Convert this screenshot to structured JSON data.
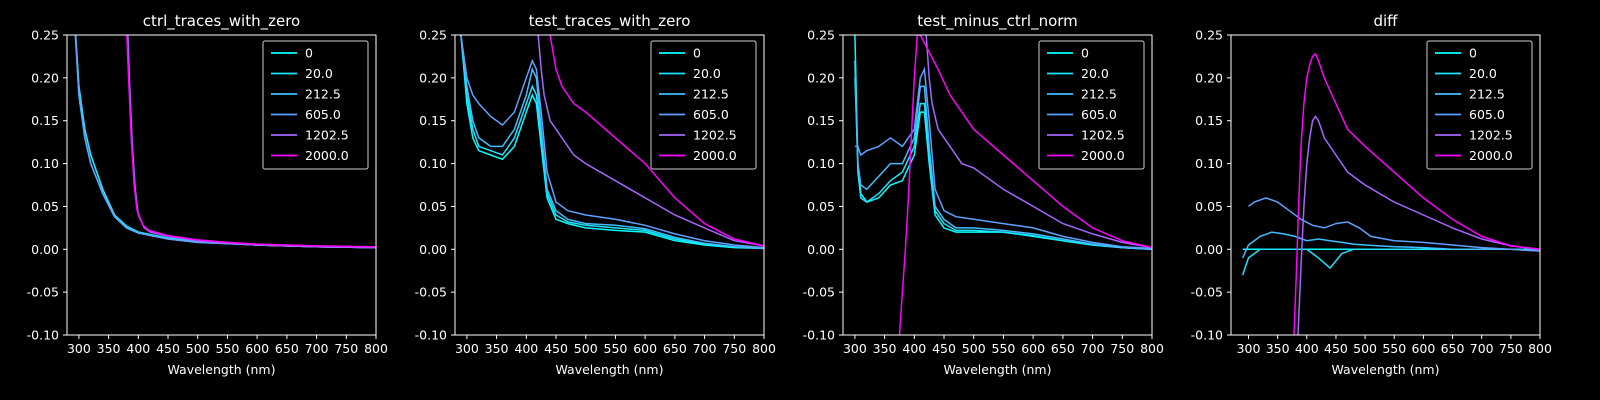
{
  "chart_data": [
    {
      "type": "line",
      "title": "ctrl_traces_with_zero",
      "xlabel": "Wavelength (nm)",
      "xlim": [
        280,
        800
      ],
      "ylim": [
        -0.1,
        0.25
      ],
      "xticks": [
        300,
        350,
        400,
        450,
        500,
        550,
        600,
        650,
        700,
        750,
        800
      ],
      "yticks": [
        -0.1,
        -0.05,
        0.0,
        0.05,
        0.1,
        0.15,
        0.2,
        0.25
      ],
      "legend_position": "top-right",
      "series": [
        {
          "name": "0",
          "color": "#00ffff",
          "x": [
            280,
            290,
            300,
            310,
            320,
            340,
            360,
            380,
            400,
            450,
            500,
            600,
            700,
            800
          ],
          "y": [
            null,
            0.3,
            0.19,
            0.14,
            0.11,
            0.07,
            0.04,
            0.027,
            0.02,
            0.013,
            0.009,
            0.005,
            0.003,
            0.002
          ]
        },
        {
          "name": "20.0",
          "color": "#1ae5ff",
          "x": [
            280,
            290,
            300,
            310,
            320,
            340,
            360,
            380,
            400,
            450,
            500,
            600,
            700,
            800
          ],
          "y": [
            null,
            0.3,
            0.19,
            0.14,
            0.11,
            0.07,
            0.04,
            0.027,
            0.02,
            0.013,
            0.009,
            0.005,
            0.003,
            0.002
          ]
        },
        {
          "name": "212.5",
          "color": "#40bfff",
          "x": [
            280,
            290,
            300,
            310,
            320,
            340,
            360,
            380,
            400,
            450,
            500,
            600,
            700,
            800
          ],
          "y": [
            null,
            0.3,
            0.18,
            0.13,
            0.1,
            0.065,
            0.038,
            0.025,
            0.019,
            0.012,
            0.008,
            0.005,
            0.003,
            0.002
          ]
        },
        {
          "name": "605.0",
          "color": "#60a0ff",
          "x": [
            280,
            290,
            300,
            310,
            320,
            340,
            360,
            380,
            400,
            450,
            500,
            600,
            700,
            800
          ],
          "y": [
            null,
            0.3,
            0.18,
            0.13,
            0.1,
            0.065,
            0.038,
            0.025,
            0.019,
            0.012,
            0.008,
            0.005,
            0.003,
            0.002
          ]
        },
        {
          "name": "1202.5",
          "color": "#a666ff",
          "x": [
            380,
            385,
            390,
            395,
            400,
            410,
            420,
            450,
            500,
            550,
            600,
            700,
            800
          ],
          "y": [
            0.3,
            0.2,
            0.12,
            0.07,
            0.04,
            0.025,
            0.02,
            0.015,
            0.01,
            0.007,
            0.005,
            0.003,
            0.002
          ]
        },
        {
          "name": "2000.0",
          "color": "#ff00ff",
          "x": [
            378,
            383,
            388,
            393,
            398,
            408,
            418,
            450,
            500,
            550,
            600,
            700,
            800
          ],
          "y": [
            0.3,
            0.21,
            0.13,
            0.075,
            0.045,
            0.028,
            0.022,
            0.016,
            0.011,
            0.008,
            0.006,
            0.004,
            0.003
          ]
        }
      ]
    },
    {
      "type": "line",
      "title": "test_traces_with_zero",
      "xlabel": "Wavelength (nm)",
      "xlim": [
        280,
        800
      ],
      "ylim": [
        -0.1,
        0.25
      ],
      "xticks": [
        300,
        350,
        400,
        450,
        500,
        550,
        600,
        650,
        700,
        750,
        800
      ],
      "yticks": [
        -0.1,
        -0.05,
        0.0,
        0.05,
        0.1,
        0.15,
        0.2,
        0.25
      ],
      "legend_position": "top-right",
      "series": [
        {
          "name": "0",
          "color": "#00ffff",
          "x": [
            290,
            300,
            310,
            320,
            340,
            360,
            380,
            400,
            410,
            417,
            425,
            435,
            450,
            470,
            500,
            550,
            600,
            650,
            700,
            750,
            800
          ],
          "y": [
            0.25,
            0.17,
            0.13,
            0.115,
            0.11,
            0.105,
            0.12,
            0.16,
            0.18,
            0.17,
            0.12,
            0.06,
            0.035,
            0.03,
            0.025,
            0.022,
            0.02,
            0.01,
            0.005,
            0.002,
            0.001
          ]
        },
        {
          "name": "20.0",
          "color": "#1ae5ff",
          "x": [
            290,
            300,
            310,
            320,
            340,
            360,
            380,
            400,
            410,
            417,
            425,
            435,
            450,
            470,
            500,
            550,
            600,
            650,
            700,
            750,
            800
          ],
          "y": [
            0.25,
            0.18,
            0.14,
            0.12,
            0.115,
            0.11,
            0.13,
            0.17,
            0.19,
            0.18,
            0.13,
            0.065,
            0.04,
            0.032,
            0.028,
            0.025,
            0.022,
            0.012,
            0.006,
            0.003,
            0.001
          ]
        },
        {
          "name": "212.5",
          "color": "#40bfff",
          "x": [
            290,
            300,
            310,
            320,
            340,
            360,
            380,
            400,
            410,
            417,
            425,
            435,
            450,
            470,
            500,
            550,
            600,
            650,
            700,
            750,
            800
          ],
          "y": [
            0.25,
            0.19,
            0.15,
            0.13,
            0.12,
            0.12,
            0.14,
            0.18,
            0.21,
            0.2,
            0.14,
            0.07,
            0.045,
            0.035,
            0.03,
            0.028,
            0.024,
            0.014,
            0.007,
            0.003,
            0.001
          ]
        },
        {
          "name": "605.0",
          "color": "#60a0ff",
          "x": [
            290,
            300,
            310,
            320,
            340,
            360,
            380,
            400,
            410,
            417,
            425,
            435,
            450,
            470,
            500,
            550,
            600,
            650,
            700,
            750,
            800
          ],
          "y": [
            0.25,
            0.2,
            0.18,
            0.17,
            0.155,
            0.145,
            0.16,
            0.2,
            0.22,
            0.21,
            0.16,
            0.09,
            0.055,
            0.045,
            0.04,
            0.035,
            0.028,
            0.018,
            0.01,
            0.005,
            0.002
          ]
        },
        {
          "name": "1202.5",
          "color": "#a666ff",
          "x": [
            420,
            425,
            430,
            440,
            460,
            480,
            500,
            550,
            600,
            650,
            700,
            750,
            800
          ],
          "y": [
            0.25,
            0.21,
            0.18,
            0.15,
            0.13,
            0.11,
            0.1,
            0.08,
            0.06,
            0.04,
            0.025,
            0.01,
            0.004
          ]
        },
        {
          "name": "2000.0",
          "color": "#ff00ff",
          "x": [
            440,
            450,
            460,
            480,
            500,
            550,
            600,
            650,
            700,
            750,
            800
          ],
          "y": [
            0.25,
            0.21,
            0.19,
            0.17,
            0.16,
            0.13,
            0.1,
            0.06,
            0.03,
            0.012,
            0.004
          ]
        }
      ]
    },
    {
      "type": "line",
      "title": "test_minus_ctrl_norm",
      "xlabel": "Wavelength (nm)",
      "xlim": [
        280,
        800
      ],
      "ylim": [
        -0.1,
        0.25
      ],
      "xticks": [
        300,
        350,
        400,
        450,
        500,
        550,
        600,
        650,
        700,
        750,
        800
      ],
      "yticks": [
        -0.1,
        -0.05,
        0.0,
        0.05,
        0.1,
        0.15,
        0.2,
        0.25
      ],
      "legend_position": "top-right",
      "series": [
        {
          "name": "0",
          "color": "#00ffff",
          "x": [
            300,
            305,
            310,
            320,
            340,
            360,
            380,
            400,
            410,
            417,
            425,
            435,
            450,
            470,
            500,
            550,
            600,
            650,
            700,
            750,
            800
          ],
          "y": [
            0.25,
            0.1,
            0.065,
            0.055,
            0.06,
            0.075,
            0.08,
            0.11,
            0.16,
            0.16,
            0.1,
            0.04,
            0.025,
            0.02,
            0.02,
            0.02,
            0.015,
            0.01,
            0.005,
            0.002,
            0.0
          ]
        },
        {
          "name": "20.0",
          "color": "#1ae5ff",
          "x": [
            300,
            305,
            310,
            320,
            340,
            360,
            380,
            400,
            410,
            417,
            425,
            435,
            450,
            470,
            500,
            550,
            600,
            650,
            700,
            750,
            800
          ],
          "y": [
            0.22,
            0.09,
            0.06,
            0.055,
            0.065,
            0.08,
            0.09,
            0.12,
            0.17,
            0.17,
            0.11,
            0.045,
            0.03,
            0.022,
            0.022,
            0.02,
            0.016,
            0.01,
            0.005,
            0.002,
            0.0
          ]
        },
        {
          "name": "212.5",
          "color": "#40bfff",
          "x": [
            300,
            305,
            310,
            320,
            340,
            360,
            380,
            400,
            410,
            417,
            425,
            435,
            450,
            470,
            500,
            550,
            600,
            650,
            700,
            750,
            800
          ],
          "y": [
            0.2,
            0.1,
            0.075,
            0.07,
            0.085,
            0.1,
            0.1,
            0.13,
            0.19,
            0.19,
            0.12,
            0.05,
            0.035,
            0.025,
            0.025,
            0.022,
            0.018,
            0.012,
            0.006,
            0.002,
            0.0
          ]
        },
        {
          "name": "605.0",
          "color": "#60a0ff",
          "x": [
            300,
            305,
            310,
            320,
            340,
            360,
            380,
            400,
            410,
            417,
            425,
            435,
            450,
            470,
            500,
            550,
            600,
            650,
            700,
            750,
            800
          ],
          "y": [
            0.12,
            0.12,
            0.11,
            0.115,
            0.12,
            0.13,
            0.12,
            0.14,
            0.2,
            0.21,
            0.15,
            0.07,
            0.045,
            0.038,
            0.035,
            0.03,
            0.025,
            0.015,
            0.008,
            0.003,
            0.001
          ]
        },
        {
          "name": "1202.5",
          "color": "#a666ff",
          "x": [
            420,
            425,
            430,
            440,
            460,
            480,
            500,
            550,
            600,
            650,
            700,
            750,
            800
          ],
          "y": [
            0.25,
            0.2,
            0.17,
            0.14,
            0.12,
            0.1,
            0.095,
            0.07,
            0.05,
            0.03,
            0.018,
            0.008,
            0.002
          ]
        },
        {
          "name": "2000.0",
          "color": "#ff00ff",
          "x": [
            375,
            380,
            385,
            390,
            395,
            400,
            405,
            410,
            440,
            460,
            480,
            500,
            550,
            600,
            650,
            700,
            750,
            800
          ],
          "y": [
            -0.1,
            -0.05,
            0.0,
            0.06,
            0.13,
            0.2,
            0.25,
            0.25,
            0.21,
            0.18,
            0.16,
            0.14,
            0.11,
            0.08,
            0.05,
            0.025,
            0.01,
            0.002
          ]
        }
      ]
    },
    {
      "type": "line",
      "title": "diff",
      "xlabel": "Wavelength (nm)",
      "xlim": [
        270,
        800
      ],
      "ylim": [
        -0.1,
        0.25
      ],
      "xticks": [
        300,
        350,
        400,
        450,
        500,
        550,
        600,
        650,
        700,
        750,
        800
      ],
      "yticks": [
        -0.1,
        -0.05,
        0.0,
        0.05,
        0.1,
        0.15,
        0.2,
        0.25
      ],
      "legend_position": "top-right",
      "series": [
        {
          "name": "0",
          "color": "#00ffff",
          "x": [
            290,
            300,
            350,
            400,
            450,
            500,
            550,
            600,
            650,
            700,
            750,
            800
          ],
          "y": [
            0.0,
            0.0,
            0.0,
            0.0,
            0.0,
            0.0,
            0.0,
            0.0,
            0.0,
            0.0,
            0.0,
            0.0
          ]
        },
        {
          "name": "20.0",
          "color": "#1ae5ff",
          "x": [
            290,
            300,
            320,
            340,
            360,
            380,
            400,
            420,
            440,
            460,
            480,
            500,
            550,
            600,
            650,
            700,
            750,
            800
          ],
          "y": [
            -0.03,
            -0.01,
            0.0,
            0.0,
            0.0,
            0.0,
            0.0,
            -0.01,
            -0.022,
            -0.005,
            0.0,
            0.0,
            0.0,
            0.0,
            0.0,
            0.0,
            0.0,
            0.0
          ]
        },
        {
          "name": "212.5",
          "color": "#40bfff",
          "x": [
            290,
            300,
            320,
            340,
            360,
            380,
            400,
            420,
            440,
            460,
            480,
            500,
            550,
            600,
            650,
            700,
            750,
            800
          ],
          "y": [
            -0.01,
            0.005,
            0.015,
            0.02,
            0.018,
            0.015,
            0.01,
            0.012,
            0.01,
            0.008,
            0.006,
            0.005,
            0.003,
            0.002,
            0.0,
            0.0,
            0.0,
            -0.002
          ]
        },
        {
          "name": "605.0",
          "color": "#60a0ff",
          "x": [
            300,
            310,
            330,
            350,
            370,
            390,
            410,
            430,
            450,
            470,
            490,
            510,
            550,
            600,
            650,
            700,
            750,
            800
          ],
          "y": [
            0.05,
            0.055,
            0.06,
            0.055,
            0.045,
            0.035,
            0.028,
            0.025,
            0.03,
            0.032,
            0.025,
            0.015,
            0.01,
            0.008,
            0.005,
            0.002,
            0.0,
            -0.002
          ]
        },
        {
          "name": "1202.5",
          "color": "#a666ff",
          "x": [
            385,
            390,
            395,
            400,
            405,
            410,
            415,
            420,
            430,
            450,
            470,
            500,
            550,
            600,
            650,
            700,
            750,
            800
          ],
          "y": [
            -0.1,
            -0.02,
            0.05,
            0.1,
            0.13,
            0.15,
            0.155,
            0.15,
            0.13,
            0.11,
            0.09,
            0.075,
            0.055,
            0.04,
            0.025,
            0.012,
            0.004,
            0.0
          ]
        },
        {
          "name": "2000.0",
          "color": "#ff00ff",
          "x": [
            378,
            382,
            386,
            390,
            395,
            400,
            405,
            410,
            415,
            420,
            430,
            450,
            470,
            500,
            550,
            600,
            650,
            700,
            750,
            800
          ],
          "y": [
            -0.1,
            -0.03,
            0.05,
            0.12,
            0.17,
            0.2,
            0.215,
            0.225,
            0.228,
            0.22,
            0.2,
            0.17,
            0.14,
            0.12,
            0.09,
            0.06,
            0.035,
            0.015,
            0.004,
            0.0
          ]
        }
      ]
    }
  ]
}
